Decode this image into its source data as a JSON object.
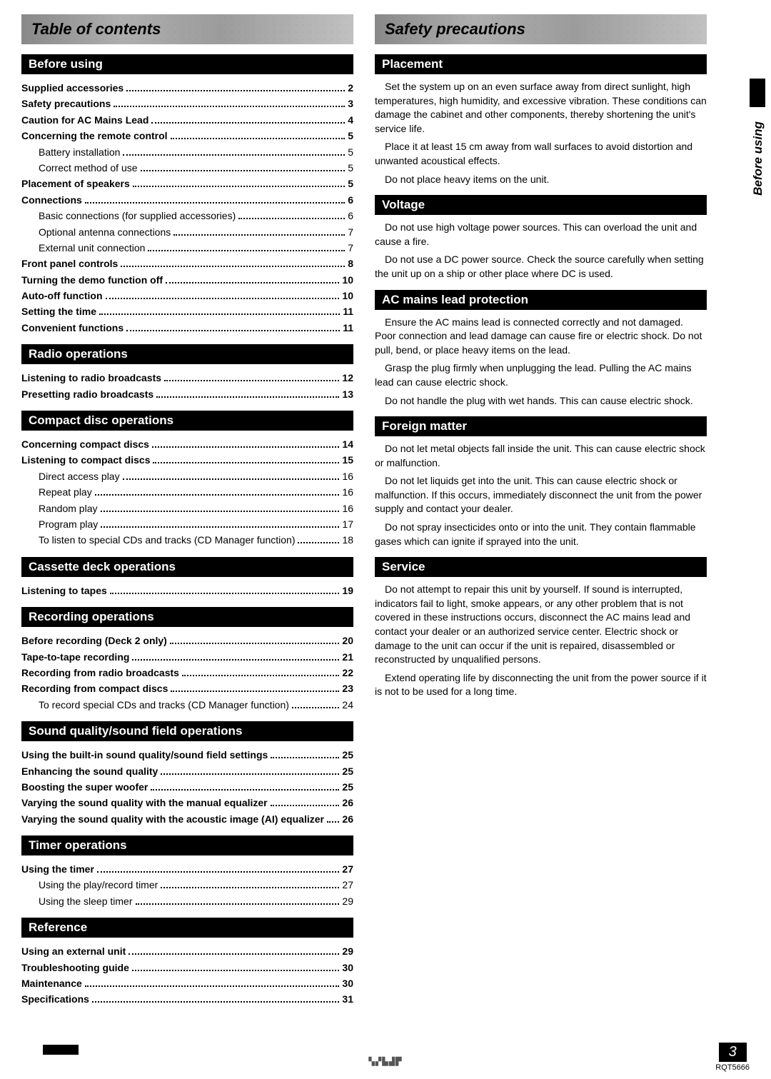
{
  "left": {
    "header": "Table of contents",
    "sections": [
      {
        "title": "Before using",
        "items": [
          {
            "label": "Supplied accessories",
            "page": "2",
            "bold": true
          },
          {
            "label": "Safety precautions",
            "page": "3",
            "bold": true
          },
          {
            "label": "Caution for AC Mains Lead",
            "page": "4",
            "bold": true
          },
          {
            "label": "Concerning the remote control",
            "page": "5",
            "bold": true
          },
          {
            "label": "Battery installation",
            "page": "5",
            "sub": true
          },
          {
            "label": "Correct method of use",
            "page": "5",
            "sub": true
          },
          {
            "label": "Placement of speakers",
            "page": "5",
            "bold": true
          },
          {
            "label": "Connections",
            "page": "6",
            "bold": true
          },
          {
            "label": "Basic connections (for supplied accessories)",
            "page": "6",
            "sub": true
          },
          {
            "label": "Optional antenna connections",
            "page": "7",
            "sub": true
          },
          {
            "label": "External unit connection",
            "page": "7",
            "sub": true
          },
          {
            "label": "Front panel controls",
            "page": "8",
            "bold": true
          },
          {
            "label": "Turning the demo function off",
            "page": "10",
            "bold": true
          },
          {
            "label": "Auto-off function",
            "page": "10",
            "bold": true
          },
          {
            "label": "Setting the time",
            "page": "11",
            "bold": true
          },
          {
            "label": "Convenient functions",
            "page": "11",
            "bold": true
          }
        ]
      },
      {
        "title": "Radio operations",
        "items": [
          {
            "label": "Listening to radio broadcasts",
            "page": "12",
            "bold": true
          },
          {
            "label": "Presetting radio broadcasts",
            "page": "13",
            "bold": true
          }
        ]
      },
      {
        "title": "Compact disc operations",
        "items": [
          {
            "label": "Concerning compact discs",
            "page": "14",
            "bold": true
          },
          {
            "label": "Listening to compact discs",
            "page": "15",
            "bold": true
          },
          {
            "label": "Direct access play",
            "page": "16",
            "sub": true
          },
          {
            "label": "Repeat play",
            "page": "16",
            "sub": true
          },
          {
            "label": "Random play",
            "page": "16",
            "sub": true
          },
          {
            "label": "Program play",
            "page": "17",
            "sub": true
          },
          {
            "label": "To listen to special CDs and tracks (CD Manager function)",
            "page": "18",
            "sub": true
          }
        ]
      },
      {
        "title": "Cassette deck operations",
        "items": [
          {
            "label": "Listening to tapes",
            "page": "19",
            "bold": true
          }
        ]
      },
      {
        "title": "Recording operations",
        "items": [
          {
            "label": "Before recording (Deck 2 only)",
            "page": "20",
            "bold": true
          },
          {
            "label": "Tape-to-tape recording",
            "page": "21",
            "bold": true
          },
          {
            "label": "Recording from radio broadcasts",
            "page": "22",
            "bold": true
          },
          {
            "label": "Recording from compact discs",
            "page": "23",
            "bold": true
          },
          {
            "label": "To record special CDs and tracks (CD Manager function)",
            "page": "24",
            "sub": true
          }
        ]
      },
      {
        "title": "Sound quality/sound field operations",
        "items": [
          {
            "label": "Using the built-in sound quality/sound field settings",
            "page": "25",
            "bold": true
          },
          {
            "label": "Enhancing the sound quality",
            "page": "25",
            "bold": true
          },
          {
            "label": "Boosting the super woofer",
            "page": "25",
            "bold": true
          },
          {
            "label": "Varying the sound quality with the manual equalizer",
            "page": "26",
            "bold": true
          },
          {
            "label": "Varying the sound quality with the acoustic image (AI) equalizer",
            "page": "26",
            "bold": true,
            "wrap": true
          }
        ]
      },
      {
        "title": "Timer operations",
        "items": [
          {
            "label": "Using the timer",
            "page": "27",
            "bold": true
          },
          {
            "label": "Using the play/record timer",
            "page": "27",
            "sub": true
          },
          {
            "label": "Using the sleep timer",
            "page": "29",
            "sub": true
          }
        ]
      },
      {
        "title": "Reference",
        "items": [
          {
            "label": "Using an external unit",
            "page": "29",
            "bold": true
          },
          {
            "label": "Troubleshooting guide",
            "page": "30",
            "bold": true
          },
          {
            "label": "Maintenance",
            "page": "30",
            "bold": true
          },
          {
            "label": "Specifications",
            "page": "31",
            "bold": true
          }
        ]
      }
    ]
  },
  "right": {
    "header": "Safety precautions",
    "sections": [
      {
        "title": "Placement",
        "paras": [
          "Set the system up on an even surface away from direct sunlight, high temperatures, high humidity, and excessive vibration. These conditions can damage the cabinet and other components, thereby shortening the unit's service life.",
          "Place it at least 15 cm away from wall surfaces to avoid distortion and unwanted acoustical effects.",
          "Do not place heavy items on the unit."
        ]
      },
      {
        "title": "Voltage",
        "paras": [
          "Do not use high voltage power sources. This can overload the unit and cause a fire.",
          "Do not use a DC power source. Check the source carefully when setting the unit up on a ship or other place where DC is used."
        ]
      },
      {
        "title": "AC mains lead protection",
        "paras": [
          "Ensure the AC mains lead is connected correctly and not damaged. Poor connection and lead damage can cause fire or electric shock. Do not pull, bend, or place heavy items on the lead.",
          "Grasp the plug firmly when unplugging the lead. Pulling the AC mains lead can cause electric shock.",
          "Do not handle the plug with wet hands. This can cause electric shock."
        ]
      },
      {
        "title": "Foreign matter",
        "paras": [
          "Do not let metal objects fall inside the unit. This can cause electric shock or malfunction.",
          "Do not let liquids get into the unit. This can cause electric shock or malfunction. If this occurs, immediately disconnect the unit from the power supply and contact your dealer.",
          "Do not spray insecticides onto or into the unit. They contain flammable gases which can ignite if sprayed into the unit."
        ]
      },
      {
        "title": "Service",
        "paras": [
          "Do not attempt to repair this unit by yourself. If sound is interrupted, indicators fail to light, smoke appears, or any other problem that is not covered in these instructions occurs, disconnect the AC mains lead and contact your dealer or an authorized service center. Electric shock or damage to the unit can occur if the unit is repaired, disassembled or reconstructed by unqualified persons.",
          "Extend operating life by disconnecting the unit from the power source if it is not to be used for a long time."
        ]
      }
    ]
  },
  "side_tab": "Before using",
  "page_number": "3",
  "doc_id": "RQT5666"
}
